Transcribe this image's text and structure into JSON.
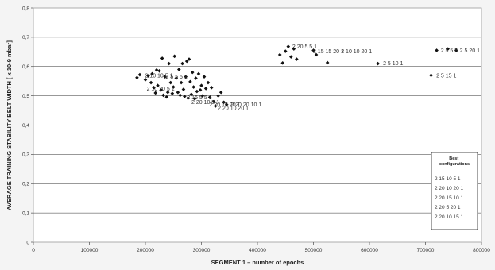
{
  "chart_data": {
    "type": "scatter",
    "title": "",
    "xlabel": "SEGMENT 1 – number of epochs",
    "ylabel": "AVERAGE TRAINING STABILITY BELT WIDTH [ x 10-9 mbar]",
    "xlim": [
      0,
      800000
    ],
    "ylim": [
      0,
      0.8
    ],
    "x_ticks": [
      0,
      100000,
      200000,
      300000,
      400000,
      500000,
      600000,
      700000,
      800000
    ],
    "y_ticks": [
      0,
      0.1,
      0.2,
      0.3,
      0.4,
      0.5,
      0.6,
      0.7,
      0.8
    ],
    "x_tick_labels": [
      "0",
      "100000",
      "200000",
      "300000",
      "400000",
      "500000",
      "600000",
      "700000",
      "800000"
    ],
    "y_tick_labels": [
      "0",
      "0,1",
      "0,2",
      "0,3",
      "0,4",
      "0,5",
      "0,6",
      "0,7",
      "0,8"
    ],
    "grid": "horizontal",
    "legend_placement": "right",
    "legend": {
      "title": "Best configurations",
      "entries": [
        "2 15 10 5 1",
        "2 20 10 20 1",
        "2 20 15 10 1",
        "2 20 5 20 1",
        "2 20 10 15 1"
      ]
    },
    "marker_color": "#111111",
    "series": [
      {
        "marker": "diamond",
        "points": [
          [
            185000,
            0.562
          ],
          [
            190000,
            0.572
          ],
          [
            200000,
            0.555
          ],
          [
            205000,
            0.568
          ],
          [
            210000,
            0.545
          ],
          [
            212000,
            0.575
          ],
          [
            215000,
            0.528
          ],
          [
            218000,
            0.51
          ],
          [
            220000,
            0.588
          ],
          [
            222000,
            0.535
          ],
          [
            225000,
            0.585
          ],
          [
            228000,
            0.52
          ],
          [
            230000,
            0.628
          ],
          [
            232000,
            0.502
          ],
          [
            235000,
            0.565
          ],
          [
            238000,
            0.496
          ],
          [
            240000,
            0.512
          ],
          [
            242000,
            0.61
          ],
          [
            245000,
            0.545
          ],
          [
            248000,
            0.508
          ],
          [
            250000,
            0.53
          ],
          [
            252000,
            0.635
          ],
          [
            255000,
            0.56
          ],
          [
            258000,
            0.512
          ],
          [
            260000,
            0.59
          ],
          [
            262000,
            0.502
          ],
          [
            264000,
            0.545
          ],
          [
            266000,
            0.61
          ],
          [
            268000,
            0.522
          ],
          [
            270000,
            0.498
          ],
          [
            272000,
            0.565
          ],
          [
            274000,
            0.618
          ],
          [
            276000,
            0.492
          ],
          [
            278000,
            0.625
          ],
          [
            280000,
            0.548
          ],
          [
            282000,
            0.505
          ],
          [
            284000,
            0.58
          ],
          [
            286000,
            0.53
          ],
          [
            288000,
            0.49
          ],
          [
            290000,
            0.56
          ],
          [
            292000,
            0.515
          ],
          [
            295000,
            0.575
          ],
          [
            298000,
            0.52
          ],
          [
            300000,
            0.535
          ],
          [
            302000,
            0.5
          ],
          [
            305000,
            0.565
          ],
          [
            308000,
            0.525
          ],
          [
            312000,
            0.545
          ],
          [
            315000,
            0.495
          ],
          [
            318000,
            0.528
          ],
          [
            322000,
            0.48
          ],
          [
            325000,
            0.465
          ],
          [
            330000,
            0.5
          ],
          [
            335000,
            0.512
          ],
          [
            340000,
            0.478
          ],
          [
            345000,
            0.47
          ],
          [
            440000,
            0.64
          ],
          [
            445000,
            0.612
          ],
          [
            450000,
            0.652
          ],
          [
            455000,
            0.668
          ],
          [
            460000,
            0.633
          ],
          [
            465000,
            0.66
          ],
          [
            470000,
            0.625
          ],
          [
            500000,
            0.655
          ],
          [
            505000,
            0.64
          ],
          [
            525000,
            0.613
          ],
          [
            615000,
            0.61
          ],
          [
            710000,
            0.57
          ],
          [
            720000,
            0.655
          ],
          [
            740000,
            0.66
          ],
          [
            755000,
            0.655
          ]
        ]
      }
    ],
    "point_labels": [
      {
        "text": "2 10 10 5 1",
        "x": 195000,
        "y": 0.57
      },
      {
        "text": "2 5 5 5 1",
        "x": 232000,
        "y": 0.565
      },
      {
        "text": "2 10 20 5 1",
        "x": 198000,
        "y": 0.525
      },
      {
        "text": "2 15 5 5 1",
        "x": 270000,
        "y": 0.495
      },
      {
        "text": "2 20 10 5 1",
        "x": 278000,
        "y": 0.478
      },
      {
        "text": "2 20 15 20 1",
        "x": 310000,
        "y": 0.47
      },
      {
        "text": "2 20 10 20 1",
        "x": 325000,
        "y": 0.458
      },
      {
        "text": "2 20 20 10 1",
        "x": 348000,
        "y": 0.47
      },
      {
        "text": "2 20 5 5 1",
        "x": 458000,
        "y": 0.668
      },
      {
        "text": "2 15 15 20 1",
        "x": 495000,
        "y": 0.652
      },
      {
        "text": "2 10 10 20 1",
        "x": 545000,
        "y": 0.652
      },
      {
        "text": "2 5 10 1",
        "x": 620000,
        "y": 0.611
      },
      {
        "text": "2 5 15 1",
        "x": 715000,
        "y": 0.57
      },
      {
        "text": "2 5 5 5",
        "x": 723000,
        "y": 0.655
      },
      {
        "text": "2 5 20 1",
        "x": 757000,
        "y": 0.655
      }
    ]
  }
}
